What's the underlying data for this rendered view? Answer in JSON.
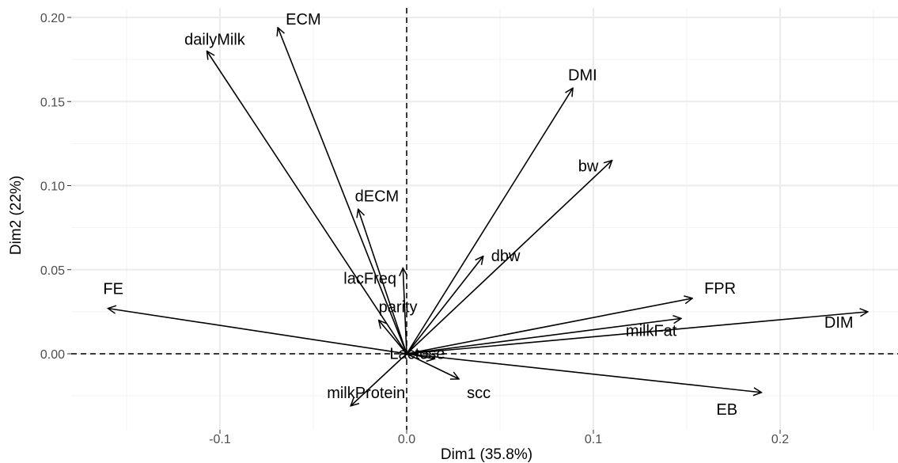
{
  "chart_data": {
    "type": "scatter",
    "xlabel": "Dim1 (35.8%)",
    "ylabel": "Dim2 (22%)",
    "xlim": [
      -0.18,
      0.26
    ],
    "ylim": [
      -0.038,
      0.205
    ],
    "x_ticks": [
      -0.1,
      0.0,
      0.1,
      0.2
    ],
    "x_tick_labels": [
      "-0.1",
      "0.0",
      "0.1",
      "0.2"
    ],
    "y_ticks": [
      0.0,
      0.05,
      0.1,
      0.15,
      0.2
    ],
    "y_tick_labels": [
      "0.00",
      "0.05",
      "0.10",
      "0.15",
      "0.20"
    ],
    "grid": true,
    "reference_lines": {
      "x": 0,
      "y": 0,
      "style": "dashed"
    },
    "vectors": [
      {
        "name": "ECM",
        "x": -0.069,
        "y": 0.194
      },
      {
        "name": "dailyMilk",
        "x": -0.107,
        "y": 0.18
      },
      {
        "name": "DMI",
        "x": 0.089,
        "y": 0.158
      },
      {
        "name": "bw",
        "x": 0.11,
        "y": 0.115
      },
      {
        "name": "dECM",
        "x": -0.026,
        "y": 0.086
      },
      {
        "name": "dbw",
        "x": 0.041,
        "y": 0.058
      },
      {
        "name": "lacFreq",
        "x": -0.002,
        "y": 0.051
      },
      {
        "name": "parity",
        "x": -0.015,
        "y": 0.02
      },
      {
        "name": "FE",
        "x": -0.16,
        "y": 0.027
      },
      {
        "name": "FPR",
        "x": 0.153,
        "y": 0.033
      },
      {
        "name": "milkFat",
        "x": 0.147,
        "y": 0.021
      },
      {
        "name": "DIM",
        "x": 0.247,
        "y": 0.025
      },
      {
        "name": "Lactose",
        "x": 0.015,
        "y": -0.003
      },
      {
        "name": "scc",
        "x": 0.028,
        "y": -0.015
      },
      {
        "name": "milkProtein",
        "x": -0.03,
        "y": -0.031
      },
      {
        "name": "EB",
        "x": 0.19,
        "y": -0.023
      }
    ]
  }
}
